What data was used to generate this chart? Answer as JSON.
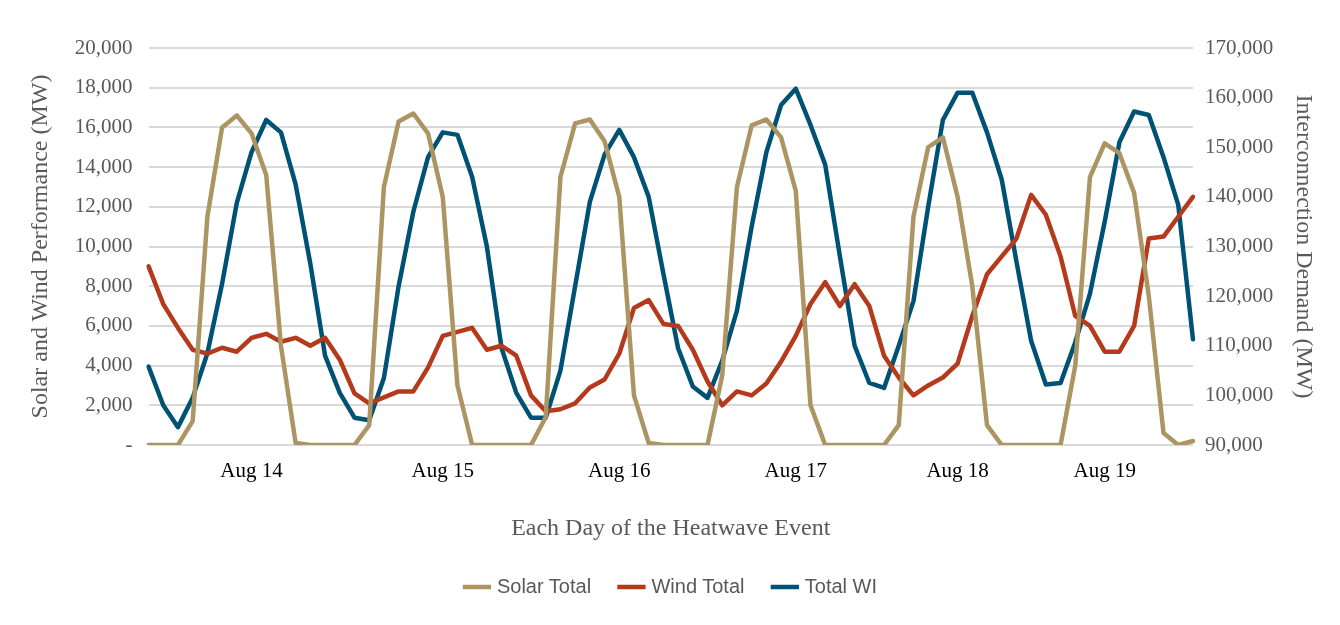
{
  "chart_data": {
    "type": "line",
    "xlabel": "Each Day of the Heatwave Event",
    "ylabel": "Solar and Wind Performance (MW)",
    "y2label": "Interconnection Demand (MW)",
    "categories": [
      null,
      null,
      null,
      null,
      null,
      null,
      null,
      "Aug 14",
      null,
      null,
      null,
      null,
      null,
      null,
      null,
      null,
      null,
      null,
      null,
      null,
      "Aug 15",
      null,
      null,
      null,
      null,
      null,
      null,
      null,
      null,
      null,
      null,
      null,
      "Aug 16",
      null,
      null,
      null,
      null,
      null,
      null,
      null,
      null,
      null,
      null,
      null,
      "Aug 17",
      null,
      null,
      null,
      null,
      null,
      null,
      null,
      null,
      null,
      null,
      "Aug 18",
      null,
      null,
      null,
      null,
      null,
      null,
      null,
      null,
      null,
      "Aug 19",
      null,
      null,
      null,
      null,
      null,
      null
    ],
    "ylim": [
      0,
      20000
    ],
    "yticks": [
      {
        "value": 0,
        "label": "-"
      },
      {
        "value": 2000,
        "label": "2,000"
      },
      {
        "value": 4000,
        "label": "4,000"
      },
      {
        "value": 6000,
        "label": "6,000"
      },
      {
        "value": 8000,
        "label": "8,000"
      },
      {
        "value": 10000,
        "label": "10,000"
      },
      {
        "value": 12000,
        "label": "12,000"
      },
      {
        "value": 14000,
        "label": "14,000"
      },
      {
        "value": 16000,
        "label": "16,000"
      },
      {
        "value": 18000,
        "label": "18,000"
      },
      {
        "value": 20000,
        "label": "20,000"
      }
    ],
    "y2lim": [
      90000,
      170000
    ],
    "y2ticks": [
      {
        "value": 90000,
        "label": "90,000"
      },
      {
        "value": 100000,
        "label": "100,000"
      },
      {
        "value": 110000,
        "label": "110,000"
      },
      {
        "value": 120000,
        "label": "120,000"
      },
      {
        "value": 130000,
        "label": "130,000"
      },
      {
        "value": 140000,
        "label": "140,000"
      },
      {
        "value": 150000,
        "label": "150,000"
      },
      {
        "value": 160000,
        "label": "160,000"
      },
      {
        "value": 170000,
        "label": "170,000"
      }
    ],
    "grid": "y",
    "legend": "bottom",
    "series": [
      {
        "name": "Solar Total",
        "color": "#ac9563",
        "values": [
          0,
          0,
          0,
          1200,
          11500,
          16000,
          16600,
          15700,
          13600,
          5000,
          100,
          0,
          0,
          0,
          0,
          1000,
          13000,
          16300,
          16700,
          15700,
          12500,
          3000,
          0,
          0,
          0,
          0,
          0,
          1400,
          13500,
          16200,
          16400,
          15300,
          12500,
          2500,
          100,
          0,
          0,
          0,
          0,
          3500,
          13000,
          16100,
          16400,
          15500,
          12800,
          2000,
          0,
          0,
          0,
          0,
          0,
          1000,
          11500,
          15000,
          15500,
          12500,
          8000,
          1000,
          0,
          0,
          0,
          0,
          0,
          4000,
          13500,
          15200,
          14700,
          12700,
          7500,
          600,
          0,
          200
        ]
      },
      {
        "name": "Wind Total",
        "color": "#b5391b",
        "values": [
          9000,
          7100,
          5900,
          4800,
          4600,
          4900,
          4700,
          5400,
          5600,
          5200,
          5400,
          5000,
          5400,
          4300,
          2600,
          2100,
          2400,
          2700,
          2700,
          3900,
          5500,
          5700,
          5900,
          4800,
          5000,
          4500,
          2500,
          1700,
          1800,
          2100,
          2900,
          3300,
          4600,
          6900,
          7300,
          6100,
          6000,
          4800,
          3200,
          2000,
          2700,
          2500,
          3100,
          4200,
          5500,
          7100,
          8200,
          7000,
          8100,
          7000,
          4500,
          3400,
          2500,
          3000,
          3400,
          4100,
          6500,
          8600,
          9500,
          10400,
          12600,
          11600,
          9500,
          6500,
          6000,
          4700,
          4700,
          6000,
          10400,
          10500,
          11500,
          12500
        ]
      },
      {
        "name": "Total WI",
        "color": "#005274",
        "axis": "y2",
        "values": [
          105800,
          98000,
          93600,
          99500,
          108500,
          122500,
          138800,
          149000,
          155500,
          153000,
          142500,
          126500,
          108000,
          100500,
          95500,
          95000,
          103500,
          122000,
          137000,
          148000,
          153000,
          152500,
          144000,
          130000,
          109500,
          100500,
          95500,
          95500,
          105000,
          122000,
          139000,
          148500,
          153500,
          148000,
          140000,
          124500,
          109500,
          101800,
          99500,
          107000,
          117100,
          134000,
          149000,
          158500,
          161800,
          154500,
          146500,
          128000,
          110000,
          102500,
          101500,
          110000,
          119000,
          138000,
          155500,
          161000,
          161000,
          153000,
          143500,
          127000,
          111000,
          102200,
          102500,
          110700,
          120500,
          135000,
          151000,
          157200,
          156500,
          148000,
          138400,
          111300
        ]
      }
    ]
  }
}
